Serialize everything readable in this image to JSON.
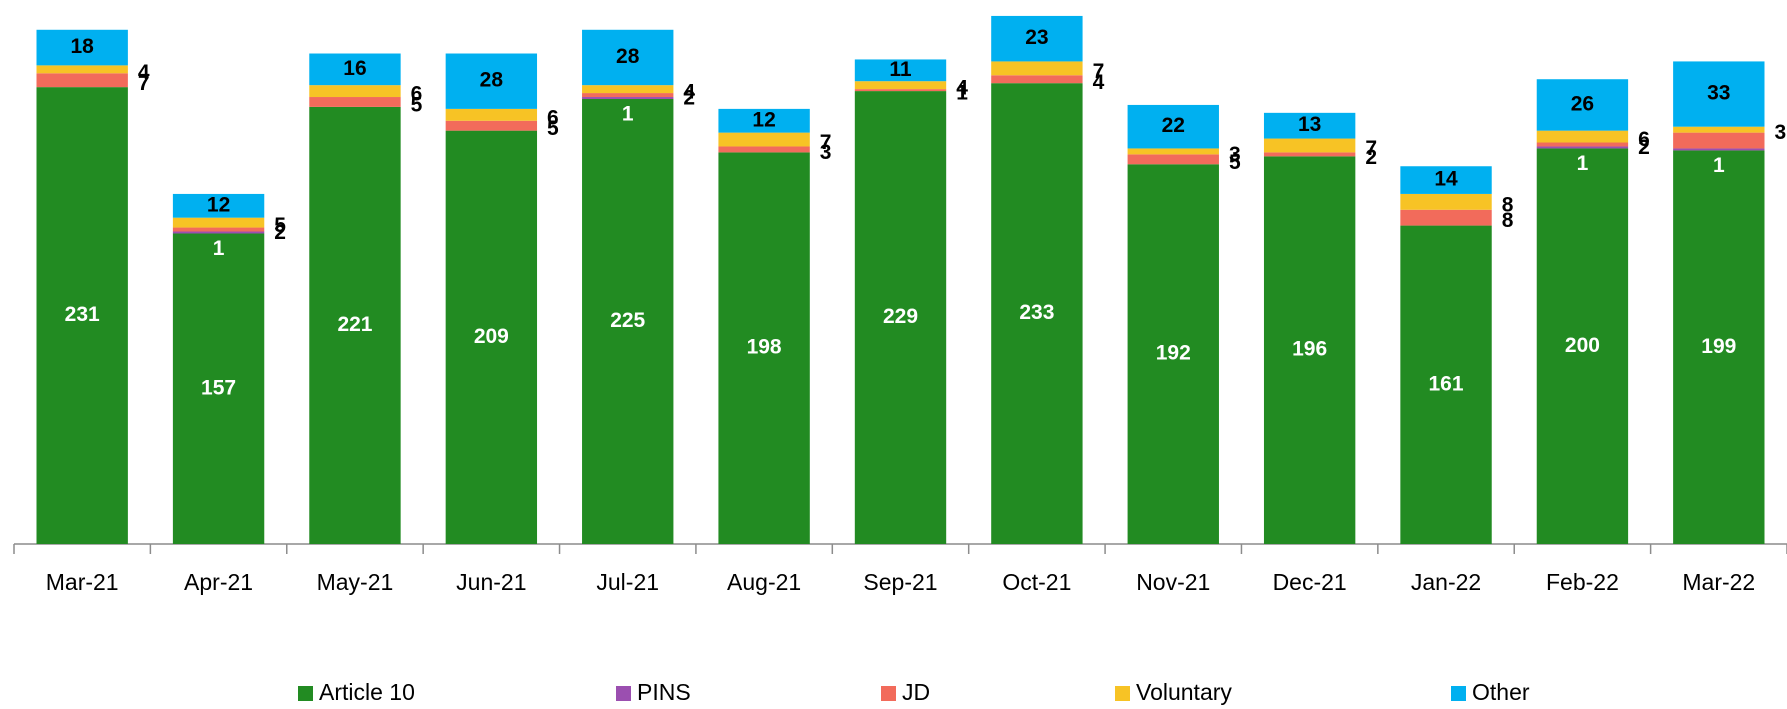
{
  "chart_data": {
    "type": "stacked_bar",
    "categories": [
      "Mar-21",
      "Apr-21",
      "May-21",
      "Jun-21",
      "Jul-21",
      "Aug-21",
      "Sep-21",
      "Oct-21",
      "Nov-21",
      "Dec-21",
      "Jan-22",
      "Feb-22",
      "Mar-22"
    ],
    "series": [
      {
        "name": "Article 10",
        "color": "#228b22",
        "values": [
          231,
          157,
          221,
          209,
          225,
          198,
          229,
          233,
          192,
          196,
          161,
          200,
          199
        ],
        "value_labels": [
          "231",
          "157",
          "221",
          "209",
          "225",
          "198",
          "229",
          "233",
          "192",
          "196",
          "161",
          "200",
          "199"
        ]
      },
      {
        "name": "PINS",
        "color": "#9b4fb0",
        "values": [
          0,
          1,
          0,
          0,
          1,
          0,
          0,
          0,
          0,
          0,
          0,
          1,
          1
        ],
        "value_labels": [
          null,
          "1",
          null,
          null,
          "1",
          null,
          null,
          null,
          null,
          null,
          null,
          "1",
          "1"
        ]
      },
      {
        "name": "JD",
        "color": "#f26b5b",
        "values": [
          7,
          2,
          5,
          5,
          2,
          3,
          1,
          4,
          5,
          2,
          8,
          2,
          8
        ],
        "value_labels": [
          "7",
          "2",
          "5",
          "5",
          "2",
          "3",
          "1",
          "4",
          "5",
          "2",
          "8",
          "2",
          null
        ]
      },
      {
        "name": "Voluntary",
        "color": "#f7c325",
        "values": [
          4,
          5,
          6,
          6,
          4,
          7,
          4,
          7,
          3,
          7,
          8,
          6,
          3
        ],
        "value_labels": [
          "4",
          "5",
          "6",
          "6",
          "4",
          "7",
          "4",
          "7",
          "3",
          "7",
          "8",
          "6",
          "3"
        ]
      },
      {
        "name": "Other",
        "color": "#00b0f0",
        "values": [
          18,
          12,
          16,
          28,
          28,
          12,
          11,
          23,
          22,
          13,
          14,
          26,
          33
        ],
        "value_labels": [
          "18",
          "12",
          "16",
          "28",
          "28",
          "12",
          "11",
          "23",
          "22",
          "13",
          "14",
          "26",
          "33"
        ]
      }
    ],
    "ylim": [
      0,
      270
    ]
  }
}
